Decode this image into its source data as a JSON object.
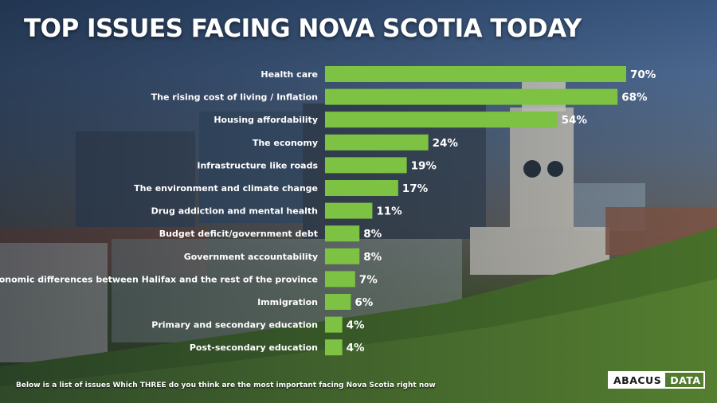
{
  "title": "TOP ISSUES FACING NOVA SCOTIA TODAY",
  "footnote": "Below is a list of issues  Which THREE do you think are the most important facing Nova Scotia right now",
  "logo": {
    "part1": "ABACUS",
    "part2": "DATA"
  },
  "colors": {
    "bar": "#7dc243",
    "text": "#ffffff"
  },
  "chart_data": {
    "type": "bar",
    "orientation": "horizontal",
    "title": "TOP ISSUES FACING NOVA SCOTIA TODAY",
    "categories": [
      "Health care",
      "The rising cost of living / Inflation",
      "Housing affordability",
      "The economy",
      "Infrastructure like roads",
      "The environment and climate change",
      "Drug addiction and mental health",
      "Budget deficit/government debt",
      "Government accountability",
      "Economic differences between Halifax and the rest of the province",
      "Immigration",
      "Primary and secondary education",
      "Post-secondary education"
    ],
    "values": [
      70,
      68,
      54,
      24,
      19,
      17,
      11,
      8,
      8,
      7,
      6,
      4,
      4
    ],
    "value_labels": [
      "70%",
      "68%",
      "54%",
      "24%",
      "19%",
      "17%",
      "11%",
      "8%",
      "8%",
      "7%",
      "6%",
      "4%",
      "4%"
    ],
    "xlim": [
      0,
      100
    ],
    "grid": false,
    "legend": "none"
  }
}
